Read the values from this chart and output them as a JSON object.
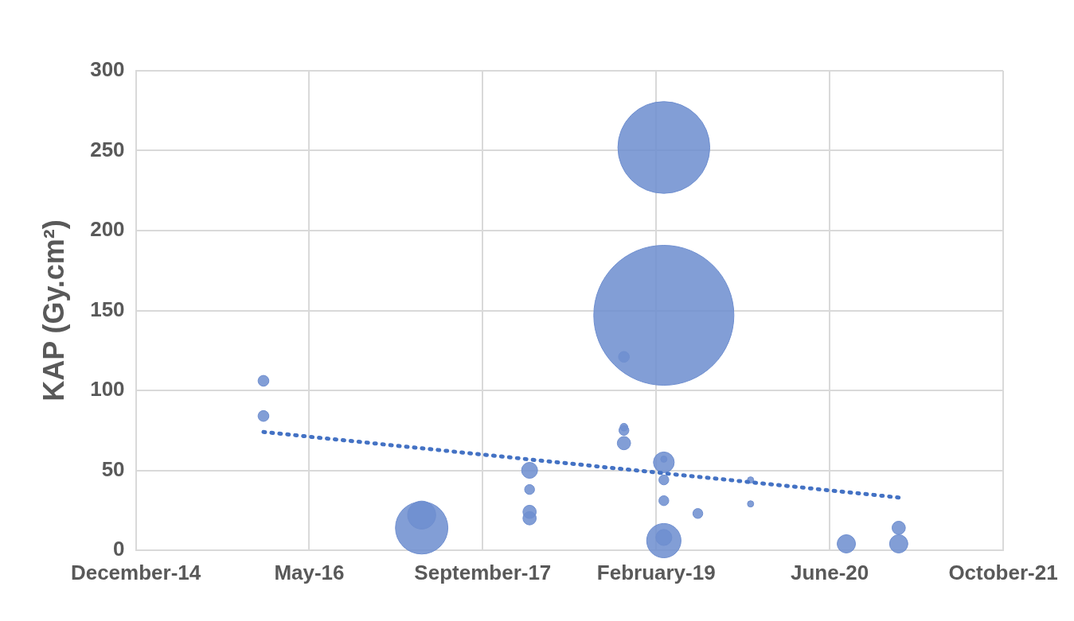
{
  "chart_data": {
    "type": "bubble",
    "ylabel": "KAP (Gy.cm²)",
    "xlim": [
      "2014-12-25",
      "2021-10-29"
    ],
    "xticks": [
      {
        "value": "2014-12-25",
        "label": "December-14"
      },
      {
        "value": "2016-05-08",
        "label": "May-16"
      },
      {
        "value": "2017-09-20",
        "label": "September-17"
      },
      {
        "value": "2019-02-02",
        "label": "February-19"
      },
      {
        "value": "2020-06-16",
        "label": "June-20"
      },
      {
        "value": "2021-10-29",
        "label": "October-21"
      }
    ],
    "ylim": [
      0,
      300
    ],
    "yticks": [
      0,
      50,
      100,
      150,
      200,
      250,
      300
    ],
    "grid": true,
    "legend": false,
    "series": [
      {
        "color": "#6f8fd0",
        "x": [
          "2015-12-28",
          "2015-12-28",
          "2017-03-28",
          "2017-03-28",
          "2018-02-02",
          "2018-02-02",
          "2018-02-02",
          "2018-02-02",
          "2018-11-01",
          "2018-11-01",
          "2018-11-01",
          "2018-11-01",
          "2019-02-24",
          "2019-02-24",
          "2019-02-24",
          "2019-02-24",
          "2019-02-24",
          "2019-02-24",
          "2019-02-24",
          "2019-02-24",
          "2019-06-02",
          "2019-11-01",
          "2019-11-01",
          "2020-08-03",
          "2021-01-01",
          "2021-01-01"
        ],
        "values": [
          106,
          84,
          14,
          22,
          50,
          38,
          24,
          20,
          121,
          77,
          75,
          67,
          252,
          147,
          55,
          57,
          44,
          31,
          6,
          8,
          23,
          44,
          29,
          4,
          4,
          14
        ],
        "sizes": [
          0.006,
          0.006,
          0.14,
          0.04,
          0.013,
          0.005,
          0.009,
          0.009,
          0.006,
          0.003,
          0.005,
          0.009,
          0.43,
          1,
          0.022,
          0.002,
          0.005,
          0.005,
          0.06,
          0.013,
          0.005,
          0.002,
          0.002,
          0.017,
          0.017,
          0.009
        ]
      },
      {
        "type": "line",
        "color": "#4472c4",
        "line_style": "dotted",
        "marker": "none",
        "x": [
          "2015-12-28",
          "2021-01-01"
        ],
        "values": [
          74,
          33
        ]
      }
    ]
  }
}
